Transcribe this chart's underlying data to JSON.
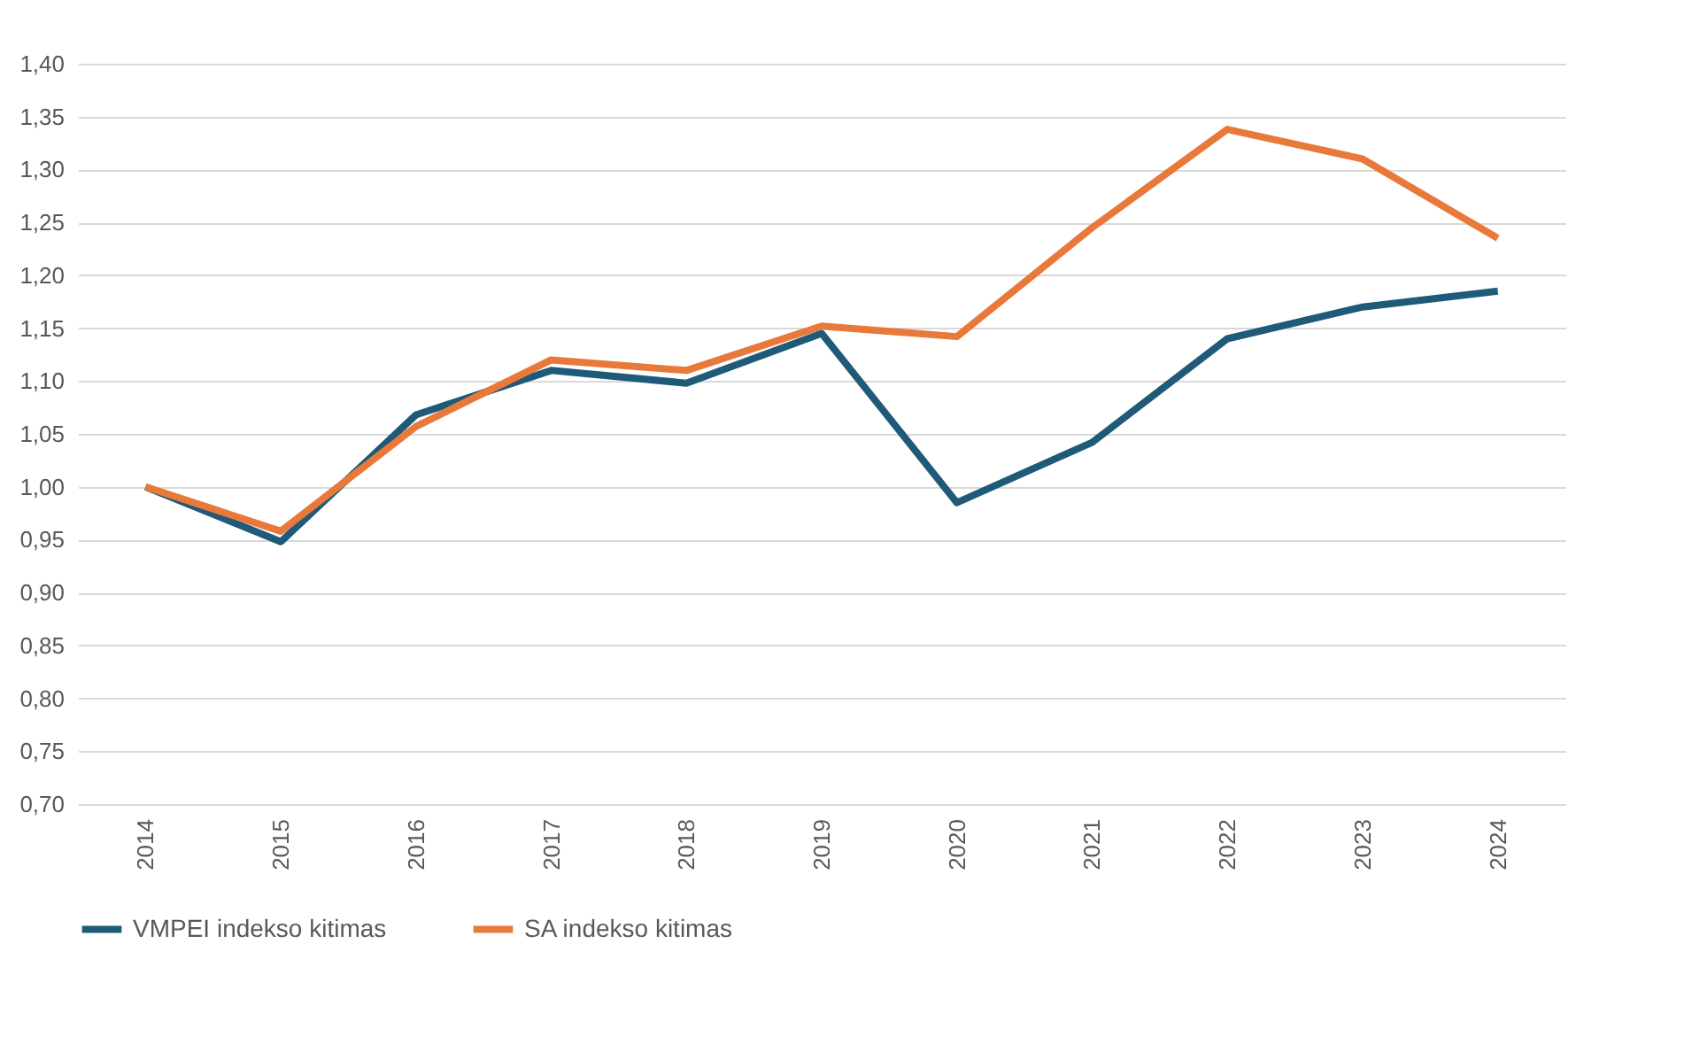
{
  "chart_data": {
    "type": "line",
    "categories": [
      "2014",
      "2015",
      "2016",
      "2017",
      "2018",
      "2019",
      "2020",
      "2021",
      "2022",
      "2023",
      "2024"
    ],
    "series": [
      {
        "name": "VMPEI indekso kitimas",
        "color": "#1f5a78",
        "values": [
          1.0,
          0.948,
          1.068,
          1.11,
          1.098,
          1.145,
          0.985,
          1.042,
          1.14,
          1.17,
          1.185
        ]
      },
      {
        "name": "SA indekso kitimas",
        "color": "#e8793a",
        "values": [
          1.0,
          0.958,
          1.057,
          1.12,
          1.11,
          1.152,
          1.142,
          1.245,
          1.338,
          1.31,
          1.235
        ]
      }
    ],
    "ylim": [
      0.7,
      1.4
    ],
    "yticks": [
      {
        "value": 0.7,
        "label": "0,70"
      },
      {
        "value": 0.75,
        "label": "0,75"
      },
      {
        "value": 0.8,
        "label": "0,80"
      },
      {
        "value": 0.85,
        "label": "0,85"
      },
      {
        "value": 0.9,
        "label": "0,90"
      },
      {
        "value": 0.95,
        "label": "0,95"
      },
      {
        "value": 1.0,
        "label": "1,00"
      },
      {
        "value": 1.05,
        "label": "1,05"
      },
      {
        "value": 1.1,
        "label": "1,10"
      },
      {
        "value": 1.15,
        "label": "1,15"
      },
      {
        "value": 1.2,
        "label": "1,20"
      },
      {
        "value": 1.25,
        "label": "1,25"
      },
      {
        "value": 1.3,
        "label": "1,30"
      },
      {
        "value": 1.35,
        "label": "1,35"
      },
      {
        "value": 1.4,
        "label": "1,40"
      }
    ],
    "grid": "y",
    "legend": "bottom",
    "marker": "none",
    "line_style": "solid"
  }
}
